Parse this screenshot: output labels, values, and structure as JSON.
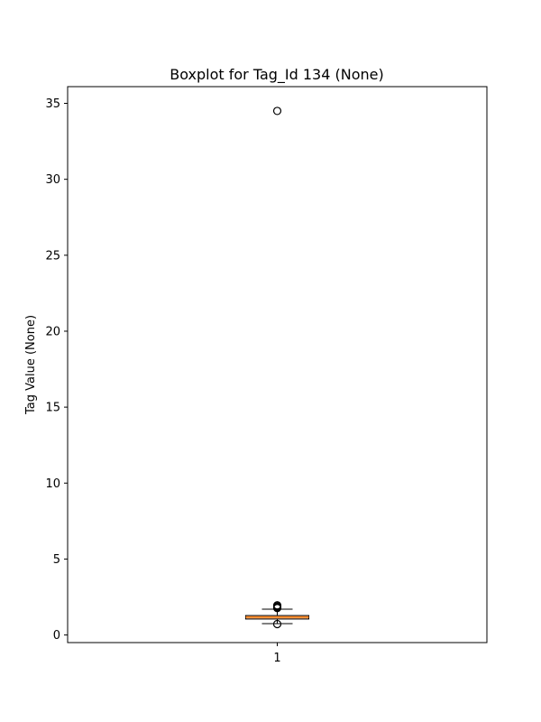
{
  "chart_data": {
    "type": "boxplot",
    "title": "Boxplot for Tag_Id 134 (None)",
    "xlabel": "",
    "ylabel": "Tag Value (None)",
    "categories": [
      "1"
    ],
    "y_ticks": [
      0,
      5,
      10,
      15,
      20,
      25,
      30,
      35
    ],
    "ylim": [
      -0.5,
      36.1
    ],
    "grid": false,
    "boxes": [
      {
        "category": "1",
        "whisker_low": 0.75,
        "q1": 1.05,
        "median": 1.18,
        "q3": 1.28,
        "whisker_high": 1.7,
        "outliers": [
          34.5,
          1.95,
          1.88,
          1.82,
          1.77,
          0.72
        ]
      }
    ],
    "colors": {
      "box_fill": "#f3b287",
      "median_line": "#ff7f0e",
      "lines": "#000000"
    }
  }
}
